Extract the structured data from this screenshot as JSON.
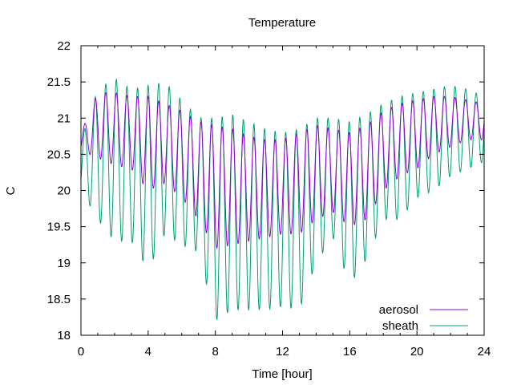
{
  "chart_data": {
    "type": "line",
    "title": "Temperature",
    "xlabel": "Time [hour]",
    "ylabel": "C",
    "xlim": [
      0,
      24
    ],
    "ylim": [
      18,
      22
    ],
    "xticks": [
      0,
      4,
      8,
      12,
      16,
      20,
      24
    ],
    "xtick_labels": [
      "0",
      "4",
      "8",
      "12",
      "16",
      "20",
      "24"
    ],
    "yticks": [
      18,
      18.5,
      19,
      19.5,
      20,
      20.5,
      21,
      21.5,
      22
    ],
    "ytick_labels": [
      "18",
      "18.5",
      "19",
      "19.5",
      "20",
      "20.5",
      "21",
      "21.5",
      "22"
    ],
    "grid": false,
    "legend_position": "bottom-right",
    "oscillation_period_hours": 0.63,
    "series": [
      {
        "name": "aerosol",
        "color": "#9400d3",
        "x": [
          0,
          1,
          2,
          3,
          4,
          5,
          6,
          7,
          8,
          9,
          10,
          11,
          12,
          13,
          14,
          15,
          16,
          17,
          18,
          19,
          20,
          21,
          22,
          23,
          24
        ],
        "max": [
          20.8,
          21.35,
          21.35,
          21.3,
          21.3,
          21.2,
          21.1,
          20.95,
          20.9,
          20.85,
          20.75,
          20.7,
          20.7,
          20.8,
          20.9,
          20.85,
          20.8,
          20.9,
          21.1,
          21.2,
          21.25,
          21.3,
          21.3,
          21.25,
          21.2
        ],
        "min": [
          20.55,
          20.45,
          20.35,
          20.3,
          20.0,
          20.1,
          19.9,
          19.6,
          19.2,
          19.25,
          19.3,
          19.35,
          19.4,
          19.4,
          19.6,
          19.7,
          19.5,
          19.6,
          20.0,
          20.2,
          20.3,
          20.5,
          20.6,
          20.7,
          20.7
        ]
      },
      {
        "name": "sheath",
        "color": "#009e73",
        "x": [
          0,
          1,
          2,
          3,
          4,
          5,
          6,
          7,
          8,
          9,
          10,
          11,
          12,
          13,
          14,
          15,
          16,
          17,
          18,
          19,
          20,
          21,
          22,
          23,
          24
        ],
        "max": [
          20.7,
          21.4,
          21.55,
          21.4,
          21.45,
          21.5,
          21.25,
          21.0,
          21.0,
          21.05,
          20.95,
          20.85,
          20.8,
          20.85,
          21.0,
          21.0,
          20.95,
          21.05,
          21.2,
          21.3,
          21.35,
          21.4,
          21.45,
          21.4,
          21.3
        ],
        "min": [
          20.0,
          19.6,
          19.3,
          19.3,
          18.9,
          19.4,
          19.25,
          19.15,
          18.2,
          18.35,
          18.35,
          18.35,
          18.4,
          18.35,
          19.0,
          19.35,
          18.7,
          19.05,
          19.6,
          19.6,
          19.9,
          20.0,
          20.2,
          20.3,
          20.4
        ]
      }
    ]
  }
}
